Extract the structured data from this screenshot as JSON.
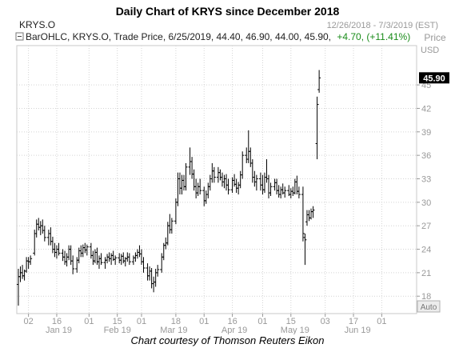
{
  "chart_data": {
    "type": "ohlc",
    "title": "Daily Chart of KRYS since December 2018",
    "symbol_label": "KRYS.O",
    "date_range": "12/26/2018 - 7/3/2019 (EST)",
    "legend": {
      "prefix": "BarOHLC, KRYS.O, Trade Price, 6/25/2019, 44.40, 46.90, 44.00, 45.90,",
      "change": "+4.70, (+11.41%)",
      "change_color": "#1a8c1a"
    },
    "axis_title": "Price",
    "currency": "USD",
    "last_price": "45.90",
    "auto_label": "Auto",
    "ylim": [
      17,
      49
    ],
    "y_ticks": [
      18,
      21,
      24,
      27,
      30,
      33,
      36,
      39,
      42,
      45
    ],
    "x_ticks": [
      {
        "day": 0,
        "label": "02"
      },
      {
        "day": 14,
        "label": "16"
      },
      {
        "day": 30,
        "label": "01"
      },
      {
        "day": 44,
        "label": "15"
      },
      {
        "day": 56,
        "label": "01"
      },
      {
        "day": 73,
        "label": "18"
      },
      {
        "day": 87,
        "label": "01"
      },
      {
        "day": 101,
        "label": "16"
      },
      {
        "day": 116,
        "label": "01"
      },
      {
        "day": 130,
        "label": "15"
      },
      {
        "day": 147,
        "label": "03"
      },
      {
        "day": 161,
        "label": "17"
      },
      {
        "day": 175,
        "label": "01"
      }
    ],
    "month_labels": [
      {
        "day": 15,
        "label": "Jan 19"
      },
      {
        "day": 44,
        "label": "Feb 19"
      },
      {
        "day": 72,
        "label": "Mar 19"
      },
      {
        "day": 102,
        "label": "Apr 19"
      },
      {
        "day": 132,
        "label": "May 19"
      },
      {
        "day": 163,
        "label": "Jun 19"
      }
    ],
    "x_range": [
      -5,
      180
    ],
    "bars": [
      {
        "d": -5,
        "o": 19.5,
        "h": 21.5,
        "l": 16.8,
        "c": 20.5
      },
      {
        "d": -4,
        "o": 20.5,
        "h": 21.8,
        "l": 19.8,
        "c": 21.0
      },
      {
        "d": -3,
        "o": 21.0,
        "h": 22.0,
        "l": 20.2,
        "c": 20.6
      },
      {
        "d": -2,
        "o": 20.6,
        "h": 21.4,
        "l": 20.0,
        "c": 21.2
      },
      {
        "d": -1,
        "o": 21.2,
        "h": 23.0,
        "l": 21.0,
        "c": 22.5
      },
      {
        "d": 0,
        "o": 22.5,
        "h": 23.0,
        "l": 21.5,
        "c": 22.4
      },
      {
        "d": 1,
        "o": 22.4,
        "h": 23.2,
        "l": 22.0,
        "c": 22.8
      },
      {
        "d": 3,
        "o": 23.5,
        "h": 26.5,
        "l": 23.2,
        "c": 26.0
      },
      {
        "d": 4,
        "o": 26.0,
        "h": 27.8,
        "l": 25.5,
        "c": 27.2
      },
      {
        "d": 5,
        "o": 27.2,
        "h": 28.0,
        "l": 26.4,
        "c": 26.8
      },
      {
        "d": 6,
        "o": 26.8,
        "h": 27.6,
        "l": 25.8,
        "c": 27.0
      },
      {
        "d": 7,
        "o": 27.0,
        "h": 27.8,
        "l": 26.0,
        "c": 26.4
      },
      {
        "d": 8,
        "o": 26.4,
        "h": 27.0,
        "l": 25.0,
        "c": 25.5
      },
      {
        "d": 10,
        "o": 25.5,
        "h": 26.5,
        "l": 24.5,
        "c": 26.0
      },
      {
        "d": 11,
        "o": 26.0,
        "h": 26.8,
        "l": 24.5,
        "c": 25.0
      },
      {
        "d": 12,
        "o": 25.0,
        "h": 25.6,
        "l": 23.5,
        "c": 24.0
      },
      {
        "d": 13,
        "o": 24.0,
        "h": 24.8,
        "l": 23.0,
        "c": 23.6
      },
      {
        "d": 14,
        "o": 23.6,
        "h": 24.5,
        "l": 22.8,
        "c": 24.0
      },
      {
        "d": 15,
        "o": 24.0,
        "h": 24.8,
        "l": 23.2,
        "c": 23.5
      },
      {
        "d": 17,
        "o": 23.5,
        "h": 24.0,
        "l": 22.5,
        "c": 23.0
      },
      {
        "d": 18,
        "o": 23.0,
        "h": 23.8,
        "l": 22.0,
        "c": 22.4
      },
      {
        "d": 19,
        "o": 22.4,
        "h": 23.5,
        "l": 21.8,
        "c": 23.0
      },
      {
        "d": 20,
        "o": 23.0,
        "h": 24.5,
        "l": 22.6,
        "c": 24.0
      },
      {
        "d": 21,
        "o": 24.0,
        "h": 24.5,
        "l": 22.0,
        "c": 22.5
      },
      {
        "d": 22,
        "o": 22.5,
        "h": 23.2,
        "l": 20.8,
        "c": 21.5
      },
      {
        "d": 24,
        "o": 21.5,
        "h": 23.0,
        "l": 21.0,
        "c": 22.6
      },
      {
        "d": 25,
        "o": 22.6,
        "h": 24.2,
        "l": 22.2,
        "c": 23.8
      },
      {
        "d": 26,
        "o": 23.8,
        "h": 24.5,
        "l": 23.0,
        "c": 23.5
      },
      {
        "d": 27,
        "o": 23.5,
        "h": 24.6,
        "l": 23.0,
        "c": 24.2
      },
      {
        "d": 28,
        "o": 24.2,
        "h": 24.8,
        "l": 23.5,
        "c": 23.9
      },
      {
        "d": 29,
        "o": 23.9,
        "h": 24.6,
        "l": 23.2,
        "c": 24.3
      },
      {
        "d": 31,
        "o": 24.3,
        "h": 24.8,
        "l": 22.8,
        "c": 23.2
      },
      {
        "d": 32,
        "o": 23.2,
        "h": 23.8,
        "l": 22.0,
        "c": 22.5
      },
      {
        "d": 33,
        "o": 22.5,
        "h": 24.0,
        "l": 22.2,
        "c": 23.6
      },
      {
        "d": 34,
        "o": 23.6,
        "h": 24.2,
        "l": 22.0,
        "c": 22.4
      },
      {
        "d": 35,
        "o": 22.4,
        "h": 23.2,
        "l": 21.5,
        "c": 22.8
      },
      {
        "d": 36,
        "o": 22.8,
        "h": 23.5,
        "l": 22.0,
        "c": 22.3
      },
      {
        "d": 38,
        "o": 22.3,
        "h": 23.0,
        "l": 21.5,
        "c": 22.6
      },
      {
        "d": 39,
        "o": 22.6,
        "h": 23.4,
        "l": 22.2,
        "c": 23.0
      },
      {
        "d": 40,
        "o": 23.0,
        "h": 23.6,
        "l": 22.4,
        "c": 22.8
      },
      {
        "d": 41,
        "o": 22.8,
        "h": 23.5,
        "l": 22.0,
        "c": 23.2
      },
      {
        "d": 42,
        "o": 23.2,
        "h": 23.8,
        "l": 22.5,
        "c": 22.7
      },
      {
        "d": 43,
        "o": 22.7,
        "h": 23.2,
        "l": 22.0,
        "c": 22.9
      },
      {
        "d": 45,
        "o": 22.9,
        "h": 23.5,
        "l": 22.2,
        "c": 22.6
      },
      {
        "d": 46,
        "o": 22.6,
        "h": 23.4,
        "l": 22.0,
        "c": 23.1
      },
      {
        "d": 47,
        "o": 23.1,
        "h": 23.6,
        "l": 22.2,
        "c": 22.5
      },
      {
        "d": 48,
        "o": 22.5,
        "h": 23.0,
        "l": 21.8,
        "c": 22.8
      },
      {
        "d": 49,
        "o": 22.8,
        "h": 23.6,
        "l": 22.4,
        "c": 23.0
      },
      {
        "d": 50,
        "o": 23.0,
        "h": 23.5,
        "l": 22.0,
        "c": 22.4
      },
      {
        "d": 52,
        "o": 22.4,
        "h": 23.2,
        "l": 22.0,
        "c": 22.9
      },
      {
        "d": 53,
        "o": 22.9,
        "h": 23.6,
        "l": 22.4,
        "c": 23.2
      },
      {
        "d": 54,
        "o": 23.2,
        "h": 24.0,
        "l": 22.8,
        "c": 23.6
      },
      {
        "d": 55,
        "o": 23.6,
        "h": 24.5,
        "l": 23.0,
        "c": 23.4
      },
      {
        "d": 56,
        "o": 23.4,
        "h": 24.0,
        "l": 22.0,
        "c": 22.4
      },
      {
        "d": 57,
        "o": 22.4,
        "h": 23.0,
        "l": 21.0,
        "c": 21.6
      },
      {
        "d": 59,
        "o": 21.6,
        "h": 22.2,
        "l": 20.0,
        "c": 20.6
      },
      {
        "d": 60,
        "o": 20.6,
        "h": 21.8,
        "l": 20.0,
        "c": 21.2
      },
      {
        "d": 61,
        "o": 21.2,
        "h": 21.6,
        "l": 19.0,
        "c": 19.6
      },
      {
        "d": 62,
        "o": 19.6,
        "h": 20.5,
        "l": 18.5,
        "c": 19.8
      },
      {
        "d": 63,
        "o": 19.8,
        "h": 21.5,
        "l": 19.2,
        "c": 21.0
      },
      {
        "d": 64,
        "o": 21.0,
        "h": 22.0,
        "l": 20.5,
        "c": 21.4
      },
      {
        "d": 66,
        "o": 21.4,
        "h": 23.5,
        "l": 21.0,
        "c": 23.0
      },
      {
        "d": 67,
        "o": 23.0,
        "h": 24.8,
        "l": 22.6,
        "c": 24.5
      },
      {
        "d": 68,
        "o": 24.5,
        "h": 25.5,
        "l": 24.0,
        "c": 24.8
      },
      {
        "d": 69,
        "o": 24.8,
        "h": 27.5,
        "l": 24.5,
        "c": 27.0
      },
      {
        "d": 70,
        "o": 27.0,
        "h": 28.5,
        "l": 26.0,
        "c": 26.5
      },
      {
        "d": 71,
        "o": 26.5,
        "h": 28.0,
        "l": 26.0,
        "c": 27.6
      },
      {
        "d": 73,
        "o": 27.6,
        "h": 30.5,
        "l": 27.2,
        "c": 30.0
      },
      {
        "d": 74,
        "o": 30.0,
        "h": 33.8,
        "l": 29.5,
        "c": 33.0
      },
      {
        "d": 75,
        "o": 33.0,
        "h": 33.8,
        "l": 31.0,
        "c": 31.8
      },
      {
        "d": 76,
        "o": 31.8,
        "h": 33.5,
        "l": 31.0,
        "c": 32.8
      },
      {
        "d": 77,
        "o": 32.8,
        "h": 33.5,
        "l": 31.5,
        "c": 32.0
      },
      {
        "d": 78,
        "o": 32.0,
        "h": 35.0,
        "l": 31.5,
        "c": 34.5
      },
      {
        "d": 80,
        "o": 34.5,
        "h": 37.0,
        "l": 33.5,
        "c": 35.2
      },
      {
        "d": 81,
        "o": 35.2,
        "h": 35.8,
        "l": 33.0,
        "c": 33.6
      },
      {
        "d": 82,
        "o": 33.6,
        "h": 34.2,
        "l": 31.5,
        "c": 32.0
      },
      {
        "d": 83,
        "o": 32.0,
        "h": 33.0,
        "l": 30.5,
        "c": 31.2
      },
      {
        "d": 84,
        "o": 31.2,
        "h": 32.5,
        "l": 30.8,
        "c": 32.0
      },
      {
        "d": 85,
        "o": 32.0,
        "h": 33.0,
        "l": 31.0,
        "c": 31.5
      },
      {
        "d": 87,
        "o": 31.5,
        "h": 32.0,
        "l": 29.5,
        "c": 30.2
      },
      {
        "d": 88,
        "o": 30.2,
        "h": 31.5,
        "l": 29.8,
        "c": 31.0
      },
      {
        "d": 89,
        "o": 31.0,
        "h": 32.5,
        "l": 30.5,
        "c": 32.0
      },
      {
        "d": 90,
        "o": 32.0,
        "h": 33.5,
        "l": 31.5,
        "c": 33.0
      },
      {
        "d": 91,
        "o": 33.0,
        "h": 35.0,
        "l": 32.5,
        "c": 34.0
      },
      {
        "d": 92,
        "o": 34.0,
        "h": 34.5,
        "l": 32.5,
        "c": 33.2
      },
      {
        "d": 94,
        "o": 33.2,
        "h": 34.5,
        "l": 32.5,
        "c": 33.8
      },
      {
        "d": 95,
        "o": 33.8,
        "h": 34.2,
        "l": 32.8,
        "c": 33.2
      },
      {
        "d": 96,
        "o": 33.2,
        "h": 33.8,
        "l": 32.0,
        "c": 32.6
      },
      {
        "d": 97,
        "o": 32.6,
        "h": 33.5,
        "l": 31.8,
        "c": 33.0
      },
      {
        "d": 98,
        "o": 33.0,
        "h": 33.6,
        "l": 31.5,
        "c": 32.2
      },
      {
        "d": 99,
        "o": 32.2,
        "h": 33.0,
        "l": 31.0,
        "c": 31.6
      },
      {
        "d": 101,
        "o": 31.6,
        "h": 33.2,
        "l": 31.2,
        "c": 32.8
      },
      {
        "d": 102,
        "o": 32.8,
        "h": 33.6,
        "l": 32.0,
        "c": 32.3
      },
      {
        "d": 103,
        "o": 32.3,
        "h": 33.0,
        "l": 31.2,
        "c": 31.8
      },
      {
        "d": 104,
        "o": 31.8,
        "h": 32.6,
        "l": 31.0,
        "c": 32.2
      },
      {
        "d": 105,
        "o": 32.2,
        "h": 34.0,
        "l": 31.8,
        "c": 33.5
      },
      {
        "d": 106,
        "o": 33.5,
        "h": 36.5,
        "l": 33.0,
        "c": 36.0
      },
      {
        "d": 108,
        "o": 36.0,
        "h": 37.0,
        "l": 35.0,
        "c": 35.5
      },
      {
        "d": 109,
        "o": 35.5,
        "h": 39.2,
        "l": 35.0,
        "c": 36.5
      },
      {
        "d": 110,
        "o": 36.5,
        "h": 37.0,
        "l": 34.5,
        "c": 35.0
      },
      {
        "d": 111,
        "o": 35.0,
        "h": 35.5,
        "l": 32.5,
        "c": 33.2
      },
      {
        "d": 112,
        "o": 33.2,
        "h": 34.0,
        "l": 32.0,
        "c": 32.6
      },
      {
        "d": 113,
        "o": 32.6,
        "h": 33.5,
        "l": 31.5,
        "c": 33.0
      },
      {
        "d": 115,
        "o": 33.0,
        "h": 33.8,
        "l": 31.5,
        "c": 32.2
      },
      {
        "d": 116,
        "o": 32.2,
        "h": 33.5,
        "l": 31.0,
        "c": 31.6
      },
      {
        "d": 117,
        "o": 31.6,
        "h": 33.8,
        "l": 31.2,
        "c": 33.2
      },
      {
        "d": 118,
        "o": 33.2,
        "h": 35.5,
        "l": 32.5,
        "c": 33.0
      },
      {
        "d": 119,
        "o": 33.0,
        "h": 33.5,
        "l": 30.5,
        "c": 31.2
      },
      {
        "d": 120,
        "o": 31.2,
        "h": 32.5,
        "l": 30.8,
        "c": 32.0
      },
      {
        "d": 122,
        "o": 32.0,
        "h": 33.0,
        "l": 31.5,
        "c": 32.5
      },
      {
        "d": 123,
        "o": 32.5,
        "h": 33.0,
        "l": 31.0,
        "c": 31.5
      },
      {
        "d": 124,
        "o": 31.5,
        "h": 32.2,
        "l": 30.6,
        "c": 31.0
      },
      {
        "d": 125,
        "o": 31.0,
        "h": 32.0,
        "l": 30.5,
        "c": 31.6
      },
      {
        "d": 126,
        "o": 31.6,
        "h": 32.4,
        "l": 31.0,
        "c": 31.2
      },
      {
        "d": 127,
        "o": 31.2,
        "h": 32.0,
        "l": 30.6,
        "c": 31.5
      },
      {
        "d": 129,
        "o": 31.5,
        "h": 32.2,
        "l": 30.8,
        "c": 31.0
      },
      {
        "d": 130,
        "o": 31.0,
        "h": 31.8,
        "l": 30.5,
        "c": 31.4
      },
      {
        "d": 131,
        "o": 31.4,
        "h": 32.0,
        "l": 30.8,
        "c": 31.2
      },
      {
        "d": 132,
        "o": 31.2,
        "h": 33.0,
        "l": 31.0,
        "c": 32.6
      },
      {
        "d": 133,
        "o": 32.6,
        "h": 33.4,
        "l": 31.0,
        "c": 31.4
      },
      {
        "d": 134,
        "o": 31.4,
        "h": 32.0,
        "l": 30.5,
        "c": 31.0
      },
      {
        "d": 136,
        "o": 31.0,
        "h": 32.0,
        "l": 25.0,
        "c": 26.0
      },
      {
        "d": 137,
        "o": 25.5,
        "h": 26.0,
        "l": 22.0,
        "c": 25.2
      },
      {
        "d": 138,
        "o": 27.5,
        "h": 29.0,
        "l": 27.0,
        "c": 28.4
      },
      {
        "d": 139,
        "o": 28.4,
        "h": 29.0,
        "l": 27.6,
        "c": 28.0
      },
      {
        "d": 140,
        "o": 28.0,
        "h": 29.2,
        "l": 27.8,
        "c": 28.8
      },
      {
        "d": 141,
        "o": 28.8,
        "h": 29.5,
        "l": 28.0,
        "c": 29.0
      },
      {
        "d": 143,
        "o": 37.5,
        "h": 43.5,
        "l": 35.5,
        "c": 42.5
      },
      {
        "d": 144,
        "o": 44.4,
        "h": 46.9,
        "l": 44.0,
        "c": 45.9
      }
    ]
  },
  "caption": "Chart courtesy of Thomson Reuters Eikon"
}
